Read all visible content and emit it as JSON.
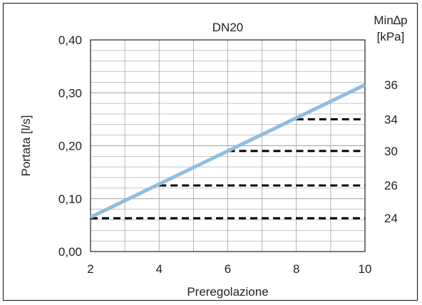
{
  "chart_data": {
    "type": "line",
    "title": "DN20",
    "xlabel": "Preregolazione",
    "ylabel": "Portata [l/s]",
    "right_axis_title_line1": "Min∆p",
    "right_axis_title_line2": "[kPa]",
    "xlim": [
      2,
      10
    ],
    "ylim": [
      0.0,
      0.4
    ],
    "x_ticks": [
      {
        "value": 2,
        "label": "2"
      },
      {
        "value": 4,
        "label": "4"
      },
      {
        "value": 6,
        "label": "6"
      },
      {
        "value": 8,
        "label": "8"
      },
      {
        "value": 10,
        "label": "10"
      }
    ],
    "y_ticks": [
      {
        "value": 0.0,
        "label": "0,00"
      },
      {
        "value": 0.1,
        "label": "0,10"
      },
      {
        "value": 0.2,
        "label": "0,20"
      },
      {
        "value": 0.3,
        "label": "0,30"
      },
      {
        "value": 0.4,
        "label": "0,40"
      }
    ],
    "grid": true,
    "series": [
      {
        "style": "solid",
        "color": "#8fbde0",
        "x": [
          2,
          10
        ],
        "y": [
          0.065,
          0.315
        ]
      }
    ],
    "thresholds": [
      {
        "x_start": 2,
        "x_end": 10,
        "y": 0.063,
        "label": "24"
      },
      {
        "x_start": 4,
        "x_end": 10,
        "y": 0.125,
        "label": "26"
      },
      {
        "x_start": 6,
        "x_end": 10,
        "y": 0.19,
        "label": "30"
      },
      {
        "x_start": 8,
        "x_end": 10,
        "y": 0.25,
        "label": "34"
      },
      {
        "x_start": 10,
        "x_end": 10,
        "y": 0.315,
        "label": "36"
      }
    ],
    "colors": {
      "line": "#8fbde0",
      "threshold": "#000000",
      "grid": "#a0a0a0"
    }
  }
}
